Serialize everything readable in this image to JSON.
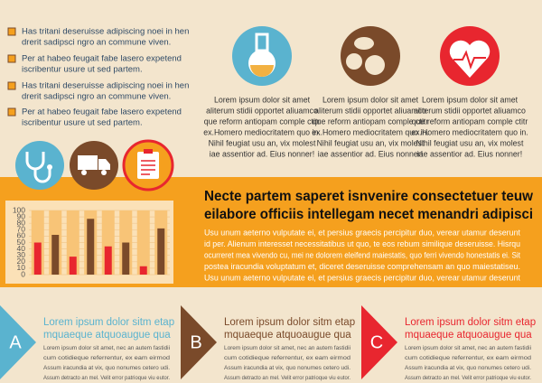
{
  "bullets": [
    [
      "Has tritani deseruisse adipiscing noei in hen",
      "drerit sadipsci ngro an commune viven."
    ],
    [
      "Per at habeo feugait fabe lasero expetend",
      "iscribentur usure ut sed partem."
    ],
    [
      "Has tritani deseruisse adipiscing noei in hen",
      "drerit sadipsci ngro an commune viven."
    ],
    [
      "Per at habeo feugait fabe lasero expetend",
      "iscribentur usure ut sed partem."
    ]
  ],
  "features": [
    [
      "Lorem ipsum dolor sit amet",
      "aliterum stidii opportet aliuamco",
      "que reform antiopam comple ctitr",
      "ex.Homero mediocritatem quo in.",
      "Nihil feugiat usu an, vix molest",
      "iae assentior ad. Eius nonner!"
    ],
    [
      "Lorem ipsum dolor sit amet",
      "aliterum stidii opportet aliuamco",
      "que reform antiopam comple ctitr",
      "ex.Homero mediocritatem quo in.",
      "Nihil feugiat usu an, vix molest",
      "iae assentior ad. Eius nonner!"
    ],
    [
      "Lorem ipsum dolor sit amet",
      "aliterum stidii opportet aliuamco",
      "que reform antiopam comple ctitr",
      "ex.Homero mediocritatem quo in.",
      "Nihil feugiat usu an, vix molest",
      "iae assentior ad. Eius nonner!"
    ]
  ],
  "chart_data": {
    "type": "bar",
    "categories": [
      null,
      null,
      null,
      null,
      null,
      null,
      null,
      null
    ],
    "values": [
      50,
      62,
      28,
      87,
      44,
      50,
      13,
      72
    ],
    "colors": [
      "#e8262f",
      "#7a4a2a",
      "#e8262f",
      "#7a4a2a",
      "#e8262f",
      "#7a4a2a",
      "#e8262f",
      "#7a4a2a"
    ],
    "ylim": [
      0,
      100
    ],
    "yticks": [
      0,
      10,
      20,
      30,
      40,
      50,
      60,
      70,
      80,
      90,
      100
    ],
    "grid": true
  },
  "article": {
    "title": [
      "Necte partem saperet isnvenire consectetuer teuw",
      "eilabore officiis intellegam necet menandri adipisci"
    ],
    "body": [
      "Usu unum aeterno vulputate ei, et persius graecis percipitur duo, verear utamur deserunt",
      "id per. Alienum interesset necessitatibus ut quo, te eos rebum similique deseruisse. Hisrqu",
      "ocurreret mea vivendo cu, mei ne dolorem eleifend maiestatis, quo ferri vivendo honestatis ei. Sit",
      "postea iracundia voluptatum et, diceret deseruisse comprehensam an quo maiestatiseu.",
      "Usu unum aeterno vulputate ei, et persius graecis percipitur duo, verear utamur deserunt"
    ]
  },
  "sections": [
    {
      "letter": "A",
      "color": "#5ab3cf",
      "heading": [
        "Lorem ipsum dolor sitm etap",
        "mquaeque atquoaugue qua"
      ],
      "body": [
        "Lorem ipsum dolor sit amet, nec an autem fastidii",
        "cum cotidieque referrentur, ex eam eirmod",
        "Assum iracundia at vix, quo nonumes cetero udi.",
        "Assum detracto an mel. Velit error patrioque viu eutor."
      ]
    },
    {
      "letter": "B",
      "color": "#7a4a2a",
      "heading": [
        "Lorem ipsum dolor sitm etap",
        "mquaeque atquoaugue qua"
      ],
      "body": [
        "Lorem ipsum dolor sit amet, nec an autem fastidii",
        "cum cotidieque referrentur, ex eam eirmod",
        "Assum iracundia at vix, quo nonumes cetero udi.",
        "Assum detracto an mel. Velit error patrioque viu eutor."
      ]
    },
    {
      "letter": "C",
      "color": "#e8262f",
      "heading": [
        "Lorem ipsum dolor sitm etap",
        "mquaeque atquoaugue qua"
      ],
      "body": [
        "Lorem ipsum dolor sit amet, nec an autem fastidii",
        "cum cotidieque referrentur, ex eam eirmod",
        "Assum iracundia at vix, quo nonumes cetero udi.",
        "Assum detracto an mel. Velit error patrioque viu eutor."
      ]
    }
  ]
}
